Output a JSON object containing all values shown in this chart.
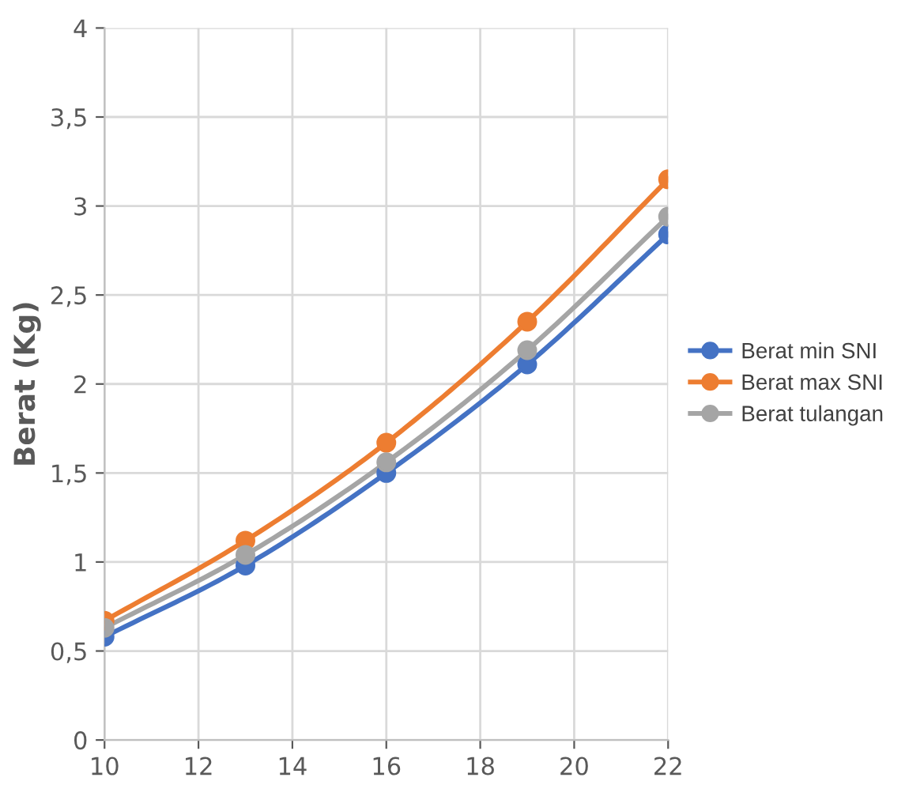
{
  "chart_data": {
    "type": "line",
    "ylabel": "Berat (Kg)",
    "x": [
      10,
      13,
      16,
      19,
      22
    ],
    "series": [
      {
        "name": "Berat min SNI",
        "color": "#4472c4",
        "values": [
          0.58,
          0.98,
          1.5,
          2.11,
          2.84
        ]
      },
      {
        "name": "Berat max SNI",
        "color": "#ed7d31",
        "values": [
          0.67,
          1.12,
          1.67,
          2.35,
          3.15
        ]
      },
      {
        "name": "Berat tulangan",
        "color": "#a5a5a5",
        "values": [
          0.63,
          1.04,
          1.56,
          2.19,
          2.94
        ]
      }
    ],
    "xlim": [
      10,
      22
    ],
    "xticks": [
      10,
      12,
      14,
      16,
      18,
      20,
      22
    ],
    "ylim": [
      0,
      4
    ],
    "yticks": [
      0,
      {
        "value": 0.5,
        "label": "0,5"
      },
      1,
      {
        "value": 1.5,
        "label": "1,5"
      },
      2,
      {
        "value": 2.5,
        "label": "2,5"
      },
      3,
      {
        "value": 3.5,
        "label": "3,5"
      },
      4
    ],
    "grid": true,
    "legend": "right",
    "marker": "circle",
    "line_style": "solid"
  }
}
